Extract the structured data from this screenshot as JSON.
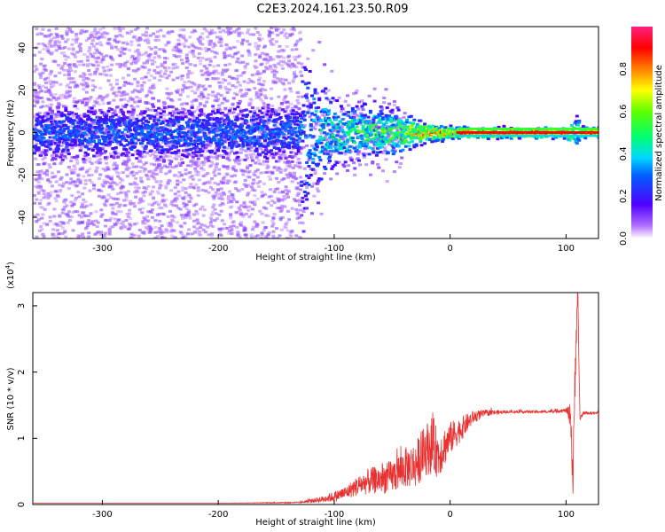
{
  "title": "C2E3.2024.161.23.50.R09",
  "chart_data": [
    {
      "type": "heatmap",
      "name": "spectrogram",
      "xlabel": "Height of straight line (km)",
      "ylabel": "Frequency (Hz)",
      "xlim": [
        -360,
        128
      ],
      "ylim": [
        -50,
        50
      ],
      "xticks": [
        -300,
        -200,
        -100,
        0,
        100
      ],
      "yticks": [
        -40,
        -20,
        0,
        20,
        40
      ],
      "colorbar": {
        "label": "Normalized spectral amplitude",
        "ticks": [
          0.0,
          0.2,
          0.4,
          0.6,
          0.8
        ],
        "range": [
          0,
          1
        ]
      },
      "profile": {
        "description_points_x": [
          -360,
          -130,
          -100,
          -50,
          -25,
          0,
          5,
          100,
          104,
          108,
          112,
          128
        ],
        "core_amplitude": [
          0.28,
          0.3,
          0.5,
          0.55,
          0.8,
          0.85,
          0.9,
          0.9,
          0.6,
          0.4,
          0.8,
          0.9
        ],
        "spread_hz": [
          50,
          50,
          15,
          12,
          5,
          3,
          2,
          2,
          8,
          10,
          3,
          2
        ]
      }
    },
    {
      "type": "line",
      "name": "snr",
      "xlabel": "Height of straight line (km)",
      "ylabel": "SNR (10 * v/v)",
      "y_multiplier": "(x10",
      "y_multiplier_exp": "4",
      "y_multiplier_close": ")",
      "xlim": [
        -360,
        128
      ],
      "ylim": [
        0,
        3.2
      ],
      "xticks": [
        -300,
        -200,
        -100,
        0,
        100
      ],
      "yticks": [
        0,
        1,
        2,
        3
      ],
      "color": "#e83030",
      "anchor_x": [
        -360,
        -200,
        -130,
        -110,
        -100,
        -90,
        -80,
        -70,
        -60,
        -50,
        -40,
        -30,
        -20,
        -15,
        -10,
        0,
        10,
        20,
        30,
        50,
        80,
        100,
        104,
        106,
        108,
        110,
        112,
        115,
        120,
        128
      ],
      "anchor_y": [
        0.02,
        0.02,
        0.03,
        0.08,
        0.12,
        0.18,
        0.28,
        0.35,
        0.38,
        0.42,
        0.55,
        0.6,
        0.85,
        0.9,
        0.75,
        1.0,
        1.15,
        1.32,
        1.38,
        1.4,
        1.4,
        1.42,
        1.35,
        0.3,
        2.2,
        3.2,
        1.3,
        1.38,
        1.38,
        1.38
      ],
      "noise_amp": [
        0.0,
        0.0,
        0.01,
        0.05,
        0.08,
        0.1,
        0.15,
        0.2,
        0.22,
        0.25,
        0.3,
        0.35,
        0.4,
        0.45,
        0.35,
        0.25,
        0.18,
        0.1,
        0.05,
        0.02,
        0.02,
        0.03,
        0.2,
        0.4,
        0.4,
        0.2,
        0.05,
        0.02,
        0.02,
        0.02
      ]
    }
  ]
}
